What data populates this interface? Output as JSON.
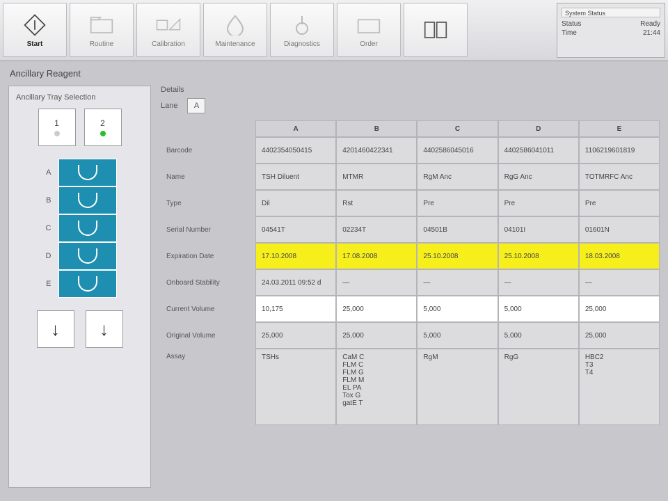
{
  "colors": {
    "accent": "#1e8fb0",
    "highlight": "#f7ef1c",
    "panel": "#e6e6ea",
    "tray2_dot": "#27c027"
  },
  "toolbar": {
    "start": "Start",
    "routine": "Routine",
    "calibration": "Calibration",
    "maintenance": "Maintenance",
    "diagnostics": "Diagnostics",
    "order": "Order",
    "manual": ""
  },
  "status": {
    "header": "System Status",
    "status_label": "Status",
    "status_value": "Ready",
    "time_label": "Time",
    "time_value": "21:44"
  },
  "crumb": "Ancillary Reagent",
  "left": {
    "title": "Ancillary Tray Selection",
    "tray1": "1",
    "tray2": "2",
    "lanes": [
      "A",
      "B",
      "C",
      "D",
      "E"
    ]
  },
  "details": {
    "title": "Details",
    "lane_label": "Lane",
    "lane_value": "A"
  },
  "table": {
    "headers": [
      "A",
      "B",
      "C",
      "D",
      "E"
    ],
    "row_labels": [
      "Barcode",
      "Name",
      "Type",
      "Serial Number",
      "Expiration Date",
      "Onboard Stability",
      "Current Volume",
      "Original Volume",
      "Assay"
    ],
    "rows": [
      {
        "style": "gray",
        "cells": [
          "4402354050415",
          "4201460422341",
          "4402586045016",
          "4402586041011",
          "1106219601819"
        ]
      },
      {
        "style": "gray",
        "cells": [
          "TSH Diluent",
          "MTMR",
          "RgM Anc",
          "RgG Anc",
          "TOTMRFC Anc"
        ]
      },
      {
        "style": "gray",
        "cells": [
          "Dil",
          "Rst",
          "Pre",
          "Pre",
          "Pre"
        ]
      },
      {
        "style": "gray",
        "cells": [
          "04541T",
          "02234T",
          "04501B",
          "04101I",
          "01601N"
        ]
      },
      {
        "style": "yellow",
        "cells": [
          "17.10.2008",
          "17.08.2008",
          "25.10.2008",
          "25.10.2008",
          "18.03.2008"
        ]
      },
      {
        "style": "gray",
        "cells": [
          "24.03.2011 09:52 d",
          "—",
          "—",
          "—",
          "—"
        ]
      },
      {
        "style": "white",
        "cells": [
          "10,175",
          "25,000",
          "5,000",
          "5,000",
          "25,000"
        ]
      },
      {
        "style": "gray",
        "cells": [
          "25,000",
          "25,000",
          "5,000",
          "5,000",
          "25,000"
        ]
      },
      {
        "style": "tall",
        "cells": [
          "TSHs",
          "CaM C\nFLM C\nFLM G\nFLM M\nEL PA\nTox G\ngatE T",
          "RgM",
          "RgG",
          "HBC2\nT3\nT4"
        ]
      }
    ]
  }
}
